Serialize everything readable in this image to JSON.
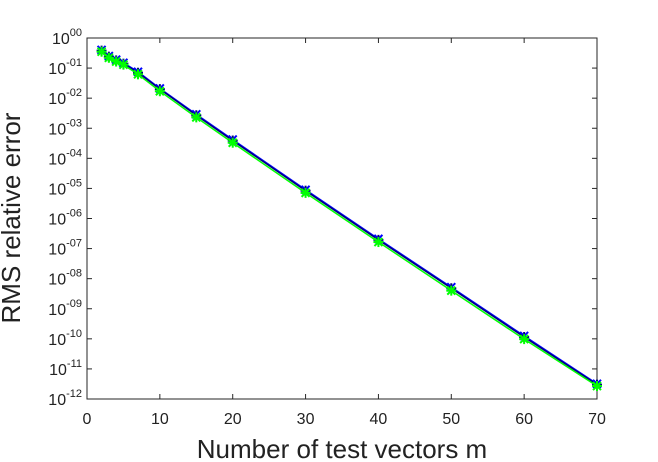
{
  "chart_data": {
    "type": "line",
    "title": "",
    "xlabel": "Number of test vectors m",
    "ylabel": "RMS relative error",
    "xlim": [
      0,
      70
    ],
    "ylim": [
      1e-12,
      1
    ],
    "yscale": "log",
    "grid": false,
    "legend": "none",
    "x_ticks": [
      "0",
      "10",
      "20",
      "30",
      "40",
      "50",
      "60",
      "70"
    ],
    "y_ticks": [
      {
        "base": "10",
        "exp": "00"
      },
      {
        "base": "10",
        "exp": "-01"
      },
      {
        "base": "10",
        "exp": "-02"
      },
      {
        "base": "10",
        "exp": "-03"
      },
      {
        "base": "10",
        "exp": "-04"
      },
      {
        "base": "10",
        "exp": "-05"
      },
      {
        "base": "10",
        "exp": "-06"
      },
      {
        "base": "10",
        "exp": "-07"
      },
      {
        "base": "10",
        "exp": "-08"
      },
      {
        "base": "10",
        "exp": "-09"
      },
      {
        "base": "10",
        "exp": "-10"
      },
      {
        "base": "10",
        "exp": "-11"
      },
      {
        "base": "10",
        "exp": "-12"
      }
    ],
    "x": [
      2,
      3,
      4,
      5,
      7,
      10,
      15,
      20,
      30,
      40,
      50,
      60,
      70
    ],
    "series": [
      {
        "color": "#0000ff",
        "marker": "x",
        "values": [
          0.4,
          0.25,
          0.19,
          0.15,
          0.075,
          0.021,
          0.0029,
          0.00042,
          9e-06,
          2.1e-07,
          5.2e-09,
          1.25e-10,
          3.2e-12
        ]
      },
      {
        "color": "#000080",
        "marker": "+",
        "values": [
          0.38,
          0.24,
          0.18,
          0.14,
          0.07,
          0.02,
          0.0027,
          0.00039,
          8.4e-06,
          1.95e-07,
          4.8e-09,
          1.15e-10,
          3e-12
        ]
      },
      {
        "color": "#00ff00",
        "marker": "*",
        "values": [
          0.35,
          0.22,
          0.165,
          0.13,
          0.062,
          0.017,
          0.0023,
          0.00033,
          7.1e-06,
          1.65e-07,
          4e-09,
          9.8e-11,
          2.7e-12
        ]
      }
    ]
  }
}
